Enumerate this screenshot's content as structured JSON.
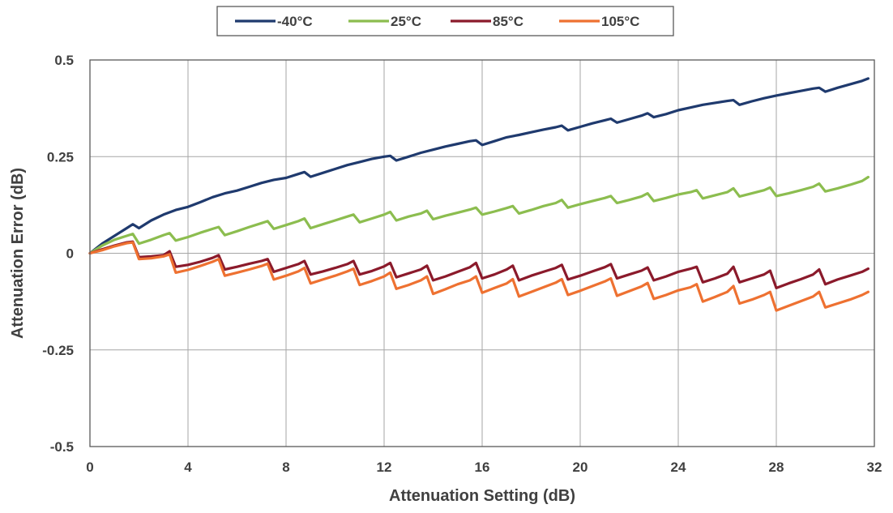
{
  "chart_data": {
    "type": "line",
    "title": "",
    "xlabel": "Attenuation Setting (dB)",
    "ylabel": "Attenuation Error (dB)",
    "xlim": [
      0,
      32
    ],
    "ylim": [
      -0.5,
      0.5
    ],
    "x_ticks": [
      0,
      4,
      8,
      12,
      16,
      20,
      24,
      28,
      32
    ],
    "x_tick_labels": [
      "0",
      "4",
      "8",
      "12",
      "16",
      "20",
      "24",
      "28",
      "32"
    ],
    "y_ticks": [
      0.5,
      0.25,
      0,
      -0.25,
      -0.5
    ],
    "y_tick_labels": [
      "0.5",
      "0.25",
      "0",
      "-0.25",
      "-0.5"
    ],
    "grid": true,
    "legend_position": "top-center",
    "series": [
      {
        "name": "-40°C",
        "color": "#1f3a6e",
        "x": [
          0,
          0.5,
          1,
          1.5,
          1.75,
          2,
          2.5,
          3,
          3.5,
          4,
          4.5,
          5,
          5.5,
          6,
          6.5,
          7,
          7.5,
          8,
          8.5,
          8.75,
          9,
          9.5,
          10,
          10.5,
          11,
          11.5,
          12,
          12.25,
          12.5,
          13,
          13.5,
          14,
          14.5,
          15,
          15.5,
          15.75,
          16,
          16.5,
          17,
          17.5,
          18,
          18.5,
          19,
          19.25,
          19.5,
          20,
          20.5,
          21,
          21.25,
          21.5,
          22,
          22.5,
          22.75,
          23,
          23.5,
          24,
          24.5,
          25,
          25.5,
          26,
          26.25,
          26.5,
          27,
          27.5,
          28,
          28.5,
          29,
          29.5,
          29.75,
          30,
          30.5,
          31,
          31.5,
          31.75
        ],
        "values": [
          0,
          0.025,
          0.045,
          0.065,
          0.075,
          0.065,
          0.085,
          0.1,
          0.112,
          0.12,
          0.132,
          0.145,
          0.155,
          0.162,
          0.172,
          0.182,
          0.19,
          0.195,
          0.205,
          0.21,
          0.198,
          0.208,
          0.218,
          0.228,
          0.236,
          0.244,
          0.25,
          0.252,
          0.24,
          0.25,
          0.26,
          0.268,
          0.276,
          0.283,
          0.29,
          0.292,
          0.28,
          0.29,
          0.3,
          0.306,
          0.313,
          0.32,
          0.326,
          0.33,
          0.318,
          0.327,
          0.336,
          0.344,
          0.348,
          0.338,
          0.347,
          0.356,
          0.362,
          0.352,
          0.36,
          0.37,
          0.377,
          0.384,
          0.389,
          0.394,
          0.396,
          0.384,
          0.393,
          0.401,
          0.408,
          0.414,
          0.42,
          0.426,
          0.428,
          0.418,
          0.428,
          0.437,
          0.446,
          0.452
        ]
      },
      {
        "name": "25°C",
        "color": "#8cbd4f",
        "x": [
          0,
          0.5,
          1,
          1.5,
          1.75,
          2,
          2.5,
          3,
          3.25,
          3.5,
          4,
          4.5,
          5,
          5.25,
          5.5,
          6,
          6.5,
          7,
          7.25,
          7.5,
          8,
          8.5,
          8.75,
          9,
          9.5,
          10,
          10.5,
          10.75,
          11,
          11.5,
          12,
          12.25,
          12.5,
          13,
          13.5,
          13.75,
          14,
          14.5,
          15,
          15.5,
          15.75,
          16,
          16.5,
          17,
          17.25,
          17.5,
          18,
          18.5,
          19,
          19.25,
          19.5,
          20,
          20.5,
          21,
          21.25,
          21.5,
          22,
          22.5,
          22.75,
          23,
          23.5,
          24,
          24.5,
          24.75,
          25,
          25.5,
          26,
          26.25,
          26.5,
          27,
          27.5,
          27.75,
          28,
          28.5,
          29,
          29.5,
          29.75,
          30,
          30.5,
          31,
          31.5,
          31.75
        ],
        "values": [
          0,
          0.02,
          0.035,
          0.045,
          0.05,
          0.025,
          0.035,
          0.047,
          0.052,
          0.033,
          0.042,
          0.053,
          0.063,
          0.068,
          0.047,
          0.057,
          0.068,
          0.078,
          0.083,
          0.063,
          0.073,
          0.083,
          0.09,
          0.065,
          0.075,
          0.085,
          0.095,
          0.1,
          0.08,
          0.09,
          0.1,
          0.107,
          0.085,
          0.095,
          0.103,
          0.11,
          0.088,
          0.097,
          0.105,
          0.113,
          0.118,
          0.1,
          0.108,
          0.117,
          0.122,
          0.103,
          0.112,
          0.122,
          0.13,
          0.138,
          0.118,
          0.127,
          0.135,
          0.143,
          0.148,
          0.13,
          0.138,
          0.147,
          0.155,
          0.135,
          0.143,
          0.152,
          0.158,
          0.163,
          0.142,
          0.15,
          0.158,
          0.168,
          0.147,
          0.155,
          0.163,
          0.17,
          0.148,
          0.155,
          0.163,
          0.172,
          0.18,
          0.16,
          0.168,
          0.177,
          0.187,
          0.197
        ]
      },
      {
        "name": "85°C",
        "color": "#8b1a2b",
        "x": [
          0,
          0.5,
          1,
          1.5,
          1.75,
          2,
          2.5,
          3,
          3.25,
          3.5,
          4,
          4.5,
          5,
          5.25,
          5.5,
          6,
          6.5,
          7,
          7.25,
          7.5,
          8,
          8.5,
          8.75,
          9,
          9.5,
          10,
          10.5,
          10.75,
          11,
          11.5,
          12,
          12.25,
          12.5,
          13,
          13.5,
          13.75,
          14,
          14.5,
          15,
          15.5,
          15.75,
          16,
          16.5,
          17,
          17.25,
          17.5,
          18,
          18.5,
          19,
          19.25,
          19.5,
          20,
          20.5,
          21,
          21.25,
          21.5,
          22,
          22.5,
          22.75,
          23,
          23.5,
          24,
          24.5,
          24.75,
          25,
          25.5,
          26,
          26.25,
          26.5,
          27,
          27.5,
          27.75,
          28,
          28.5,
          29,
          29.5,
          29.75,
          30,
          30.5,
          31,
          31.5,
          31.75
        ],
        "values": [
          0,
          0.01,
          0.02,
          0.028,
          0.03,
          -0.01,
          -0.008,
          -0.005,
          0.005,
          -0.035,
          -0.03,
          -0.022,
          -0.012,
          -0.005,
          -0.042,
          -0.035,
          -0.027,
          -0.02,
          -0.015,
          -0.048,
          -0.038,
          -0.028,
          -0.02,
          -0.055,
          -0.047,
          -0.038,
          -0.028,
          -0.02,
          -0.055,
          -0.046,
          -0.034,
          -0.025,
          -0.062,
          -0.052,
          -0.042,
          -0.032,
          -0.07,
          -0.06,
          -0.048,
          -0.036,
          -0.025,
          -0.065,
          -0.055,
          -0.042,
          -0.032,
          -0.07,
          -0.058,
          -0.048,
          -0.038,
          -0.03,
          -0.068,
          -0.058,
          -0.047,
          -0.036,
          -0.028,
          -0.065,
          -0.055,
          -0.045,
          -0.037,
          -0.07,
          -0.06,
          -0.048,
          -0.04,
          -0.035,
          -0.075,
          -0.065,
          -0.053,
          -0.035,
          -0.075,
          -0.065,
          -0.055,
          -0.045,
          -0.09,
          -0.078,
          -0.067,
          -0.055,
          -0.042,
          -0.08,
          -0.068,
          -0.058,
          -0.048,
          -0.04
        ]
      },
      {
        "name": "105°C",
        "color": "#ee7131",
        "x": [
          0,
          0.5,
          1,
          1.5,
          1.75,
          2,
          2.5,
          3,
          3.25,
          3.5,
          4,
          4.5,
          5,
          5.25,
          5.5,
          6,
          6.5,
          7,
          7.25,
          7.5,
          8,
          8.5,
          8.75,
          9,
          9.5,
          10,
          10.5,
          10.75,
          11,
          11.5,
          12,
          12.25,
          12.5,
          13,
          13.5,
          13.75,
          14,
          14.5,
          15,
          15.5,
          15.75,
          16,
          16.5,
          17,
          17.25,
          17.5,
          18,
          18.5,
          19,
          19.25,
          19.5,
          20,
          20.5,
          21,
          21.25,
          21.5,
          22,
          22.5,
          22.75,
          23,
          23.5,
          24,
          24.5,
          24.75,
          25,
          25.5,
          26,
          26.25,
          26.5,
          27,
          27.5,
          27.75,
          28,
          28.5,
          29,
          29.5,
          29.75,
          30,
          30.5,
          31,
          31.5,
          31.75
        ],
        "values": [
          0,
          0.008,
          0.018,
          0.026,
          0.028,
          -0.015,
          -0.013,
          -0.008,
          -0.003,
          -0.05,
          -0.043,
          -0.033,
          -0.022,
          -0.015,
          -0.058,
          -0.05,
          -0.042,
          -0.033,
          -0.027,
          -0.068,
          -0.058,
          -0.047,
          -0.038,
          -0.078,
          -0.068,
          -0.058,
          -0.047,
          -0.04,
          -0.082,
          -0.072,
          -0.06,
          -0.05,
          -0.092,
          -0.082,
          -0.07,
          -0.06,
          -0.105,
          -0.093,
          -0.08,
          -0.07,
          -0.06,
          -0.102,
          -0.09,
          -0.078,
          -0.067,
          -0.112,
          -0.1,
          -0.088,
          -0.076,
          -0.067,
          -0.108,
          -0.097,
          -0.085,
          -0.073,
          -0.065,
          -0.11,
          -0.098,
          -0.086,
          -0.077,
          -0.118,
          -0.108,
          -0.096,
          -0.088,
          -0.08,
          -0.125,
          -0.113,
          -0.1,
          -0.085,
          -0.13,
          -0.12,
          -0.108,
          -0.1,
          -0.148,
          -0.136,
          -0.124,
          -0.112,
          -0.1,
          -0.14,
          -0.13,
          -0.12,
          -0.108,
          -0.1
        ]
      }
    ]
  }
}
